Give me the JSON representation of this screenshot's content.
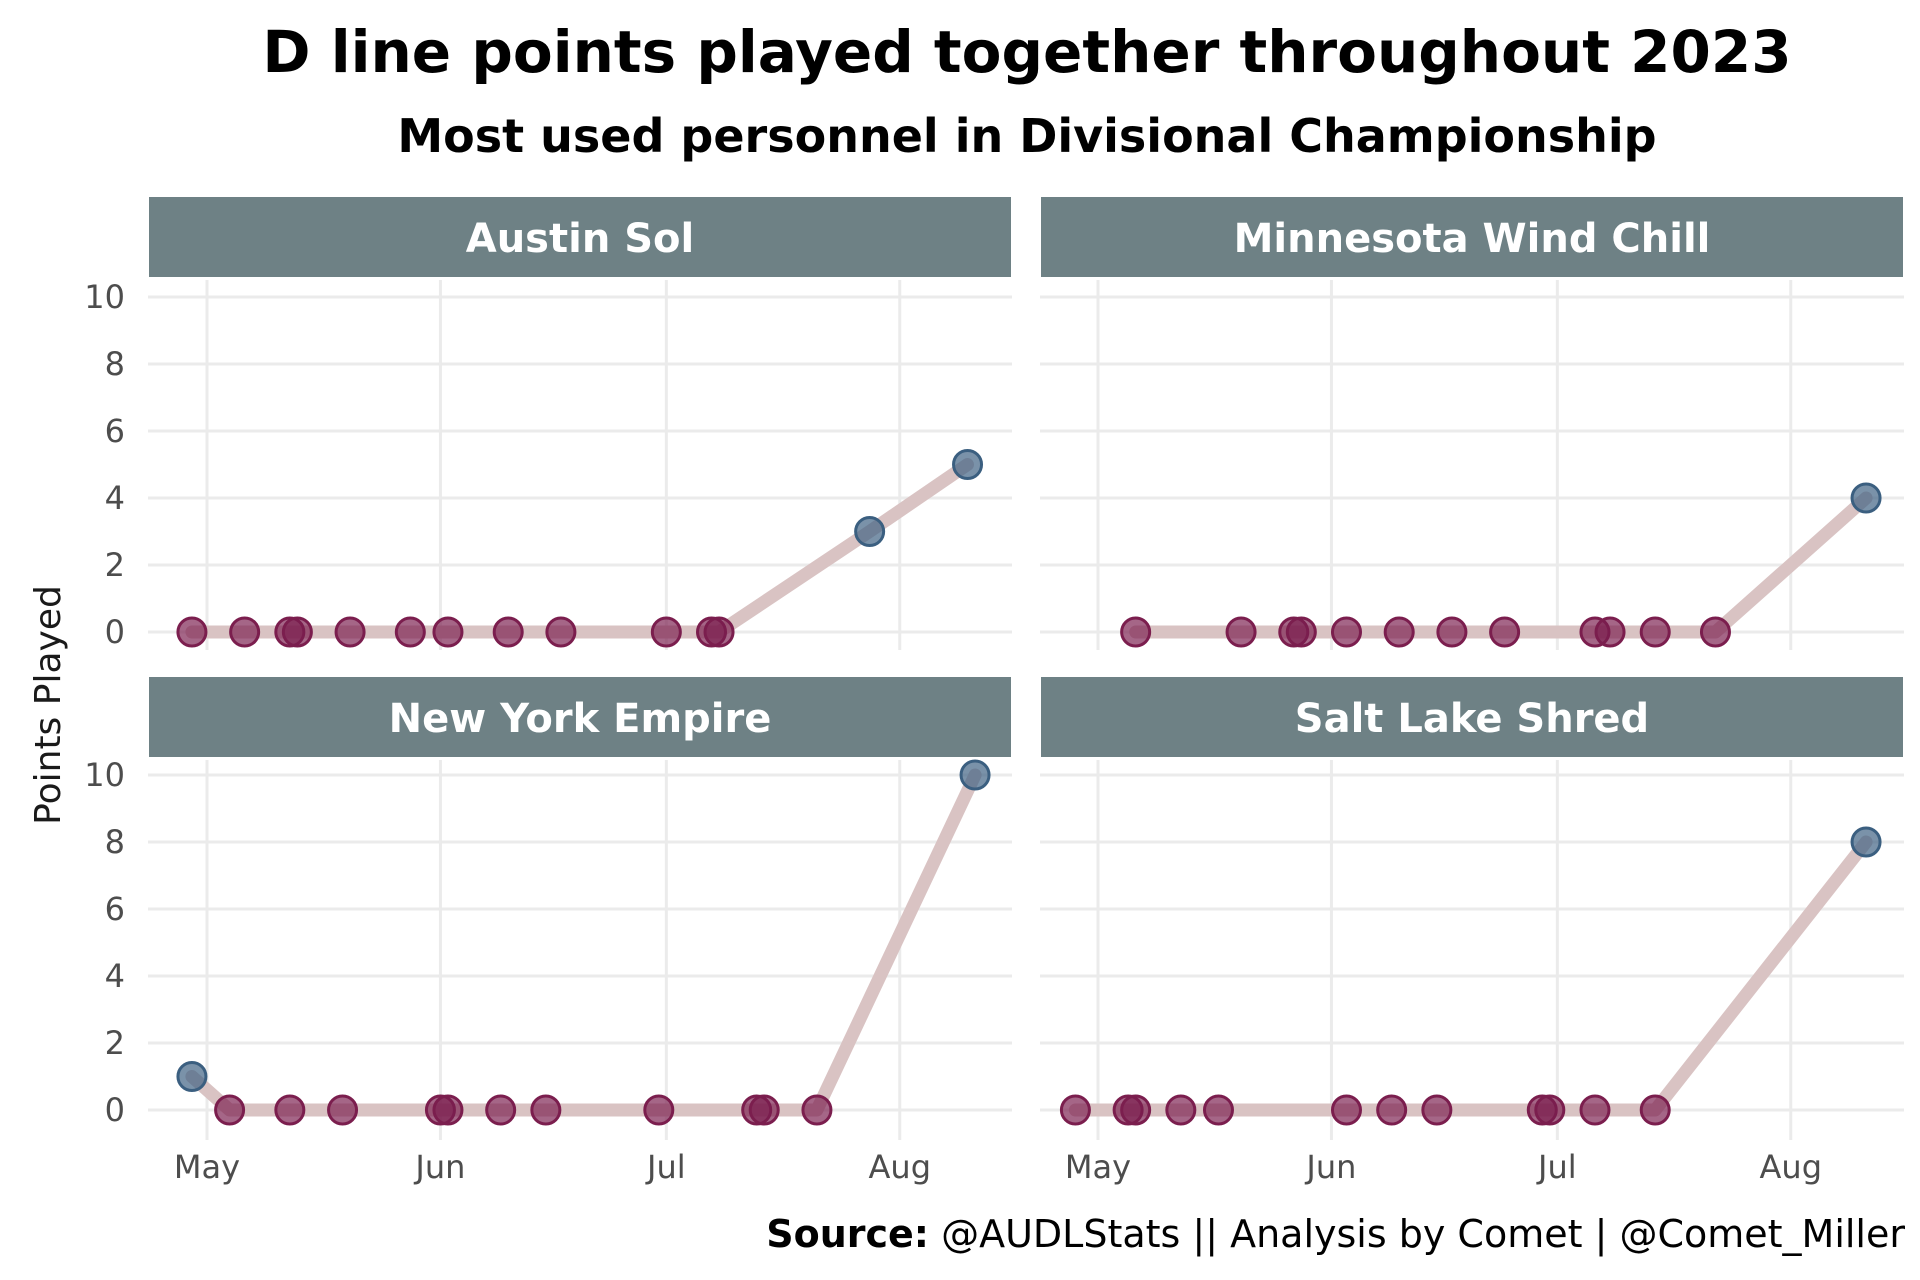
{
  "chart_data": {
    "type": "line",
    "title": "D line points played together throughout 2023",
    "subtitle": "Most used personnel in Divisional Championship",
    "ylabel": "Points Played",
    "xlabel": "",
    "caption_bold": "Source:",
    "caption_rest": " @AUDLStats || Analysis by Comet | @Comet_Miller",
    "ylim": [
      0,
      10
    ],
    "yticks": [
      "0",
      "2",
      "4",
      "6",
      "8",
      "10"
    ],
    "xticks": [
      {
        "label": "May",
        "date": "2023-05-01"
      },
      {
        "label": "Jun",
        "date": "2023-06-01"
      },
      {
        "label": "Jul",
        "date": "2023-07-01"
      },
      {
        "label": "Aug",
        "date": "2023-08-01"
      }
    ],
    "grid": true,
    "colors": {
      "zero": "#7b1e4e",
      "nonzero": "#3b5f80",
      "line": "#d9c3c3",
      "strip": "#6e8185",
      "grid": "#ebebeb"
    },
    "panels": [
      {
        "name": "Austin Sol",
        "dates": [
          "2023-04-29",
          "2023-05-06",
          "2023-05-12",
          "2023-05-13",
          "2023-05-20",
          "2023-05-28",
          "2023-06-02",
          "2023-06-10",
          "2023-06-17",
          "2023-07-01",
          "2023-07-07",
          "2023-07-08",
          "2023-07-28",
          "2023-08-10"
        ],
        "values": [
          0,
          0,
          0,
          0,
          0,
          0,
          0,
          0,
          0,
          0,
          0,
          0,
          3,
          5
        ]
      },
      {
        "name": "Minnesota Wind Chill",
        "dates": [
          "2023-05-06",
          "2023-05-20",
          "2023-05-27",
          "2023-05-28",
          "2023-06-03",
          "2023-06-10",
          "2023-06-17",
          "2023-06-24",
          "2023-07-06",
          "2023-07-08",
          "2023-07-14",
          "2023-07-22",
          "2023-08-11"
        ],
        "values": [
          0,
          0,
          0,
          0,
          0,
          0,
          0,
          0,
          0,
          0,
          0,
          0,
          4
        ]
      },
      {
        "name": "New York Empire",
        "dates": [
          "2023-04-29",
          "2023-05-04",
          "2023-05-12",
          "2023-05-19",
          "2023-06-01",
          "2023-06-02",
          "2023-06-09",
          "2023-06-15",
          "2023-06-30",
          "2023-07-13",
          "2023-07-14",
          "2023-07-21",
          "2023-08-11"
        ],
        "values": [
          1,
          0,
          0,
          0,
          0,
          0,
          0,
          0,
          0,
          0,
          0,
          0,
          10
        ]
      },
      {
        "name": "Salt Lake Shred",
        "dates": [
          "2023-04-28",
          "2023-05-05",
          "2023-05-06",
          "2023-05-12",
          "2023-05-17",
          "2023-06-03",
          "2023-06-09",
          "2023-06-15",
          "2023-06-29",
          "2023-06-30",
          "2023-07-06",
          "2023-07-14",
          "2023-08-11"
        ],
        "values": [
          0,
          0,
          0,
          0,
          0,
          0,
          0,
          0,
          0,
          0,
          0,
          0,
          8
        ]
      }
    ]
  }
}
